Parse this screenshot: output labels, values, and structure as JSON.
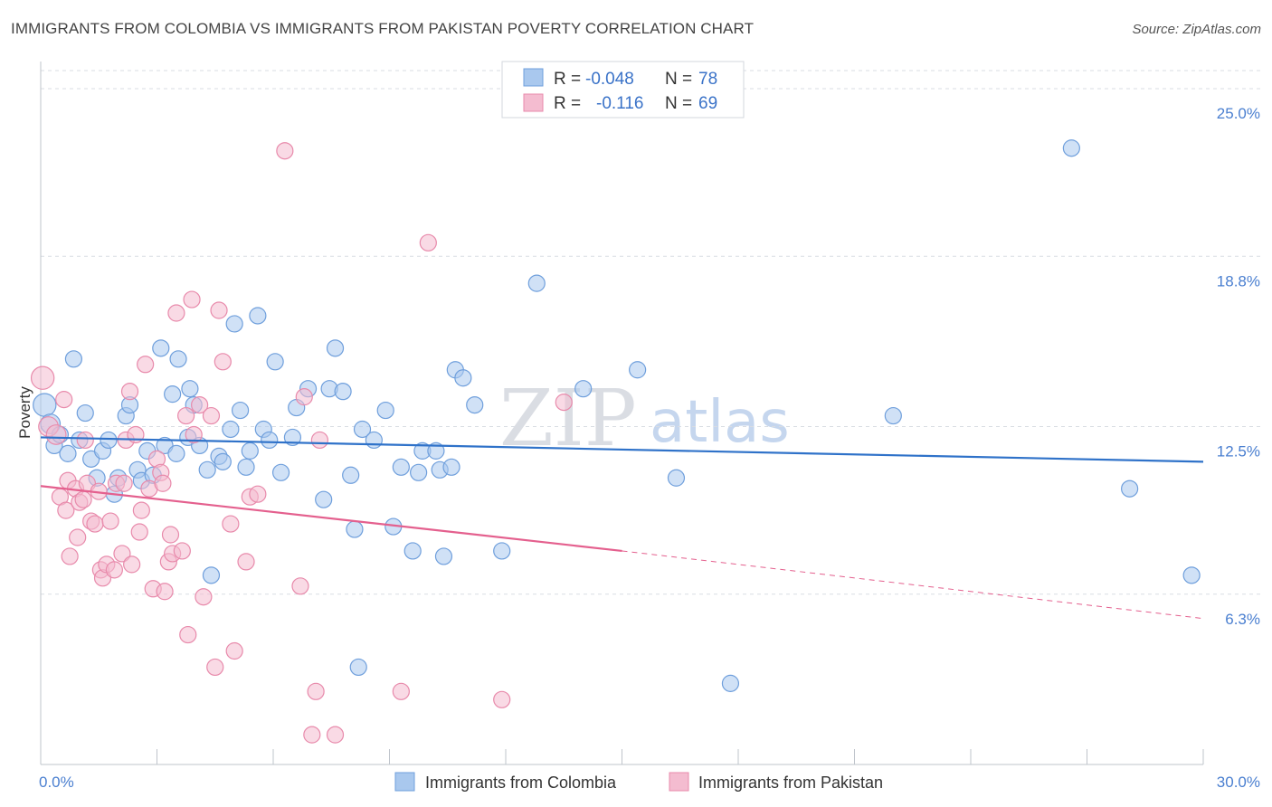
{
  "title": "IMMIGRANTS FROM COLOMBIA VS IMMIGRANTS FROM PAKISTAN POVERTY CORRELATION CHART",
  "source": "Source: ZipAtlas.com",
  "watermark": {
    "zip": "ZIP",
    "atlas": "atlas"
  },
  "colors": {
    "colombia_fill": "#a9c8ee",
    "colombia_stroke": "#6f9fdc",
    "colombia_line": "#2f72c9",
    "pakistan_fill": "#f4bcd0",
    "pakistan_stroke": "#e88aab",
    "pakistan_line": "#e4608e",
    "grid": "#d9dde3",
    "tick_label": "#4a7fd0"
  },
  "legend": {
    "rows": [
      {
        "r_label": "R =",
        "r_value": "-0.048",
        "n_label": "N =",
        "n_value": "78"
      },
      {
        "r_label": "R =",
        "r_value": "-0.116",
        "n_label": "N =",
        "n_value": "69"
      }
    ]
  },
  "chart_data": {
    "type": "scatter",
    "title": "IMMIGRANTS FROM COLOMBIA VS IMMIGRANTS FROM PAKISTAN POVERTY CORRELATION CHART",
    "xlabel": "",
    "ylabel": "Poverty",
    "xlim": [
      0,
      30
    ],
    "ylim": [
      0,
      26
    ],
    "x_ticks": [
      {
        "value": 0,
        "label": "0.0%"
      },
      {
        "value": 30,
        "label": "30.0%"
      }
    ],
    "y_ticks": [
      {
        "value": 6.3,
        "label": "6.3%"
      },
      {
        "value": 12.5,
        "label": "12.5%"
      },
      {
        "value": 18.8,
        "label": "18.8%"
      },
      {
        "value": 25.0,
        "label": "25.0%"
      }
    ],
    "series": [
      {
        "name": "Immigrants from Colombia",
        "r": -0.048,
        "n": 78,
        "trend": {
          "x": [
            0,
            30
          ],
          "y": [
            12.1,
            11.2
          ]
        },
        "points": [
          [
            0.1,
            13.3,
            14
          ],
          [
            0.25,
            12.6,
            12
          ],
          [
            0.35,
            11.8,
            10
          ],
          [
            0.5,
            12.2,
            10
          ],
          [
            0.7,
            11.5,
            10
          ],
          [
            0.85,
            15.0,
            10
          ],
          [
            1.0,
            12.0,
            10
          ],
          [
            1.15,
            13.0,
            10
          ],
          [
            1.3,
            11.3,
            10
          ],
          [
            1.45,
            10.6,
            10
          ],
          [
            1.6,
            11.6,
            10
          ],
          [
            1.75,
            12.0,
            10
          ],
          [
            1.9,
            10.0,
            10
          ],
          [
            2.0,
            10.6,
            10
          ],
          [
            2.2,
            12.9,
            10
          ],
          [
            2.3,
            13.3,
            10
          ],
          [
            2.5,
            10.9,
            10
          ],
          [
            2.6,
            10.5,
            10
          ],
          [
            2.75,
            11.6,
            10
          ],
          [
            2.9,
            10.7,
            10
          ],
          [
            3.1,
            15.4,
            10
          ],
          [
            3.2,
            11.8,
            10
          ],
          [
            3.4,
            13.7,
            10
          ],
          [
            3.5,
            11.5,
            10
          ],
          [
            3.55,
            15.0,
            10
          ],
          [
            3.8,
            12.1,
            10
          ],
          [
            3.85,
            13.9,
            10
          ],
          [
            3.95,
            13.3,
            10
          ],
          [
            4.1,
            11.8,
            10
          ],
          [
            4.3,
            10.9,
            10
          ],
          [
            4.4,
            7.0,
            10
          ],
          [
            4.6,
            11.4,
            10
          ],
          [
            4.7,
            11.2,
            10
          ],
          [
            4.9,
            12.4,
            10
          ],
          [
            5.0,
            16.3,
            10
          ],
          [
            5.15,
            13.1,
            10
          ],
          [
            5.3,
            11.0,
            10
          ],
          [
            5.4,
            11.6,
            10
          ],
          [
            5.6,
            16.6,
            10
          ],
          [
            5.75,
            12.4,
            10
          ],
          [
            5.9,
            12.0,
            10
          ],
          [
            6.05,
            14.9,
            10
          ],
          [
            6.2,
            10.8,
            10
          ],
          [
            6.5,
            12.1,
            10
          ],
          [
            6.6,
            13.2,
            10
          ],
          [
            6.9,
            13.9,
            10
          ],
          [
            7.3,
            9.8,
            10
          ],
          [
            7.45,
            13.9,
            10
          ],
          [
            7.6,
            15.4,
            10
          ],
          [
            7.8,
            13.8,
            10
          ],
          [
            8.0,
            10.7,
            10
          ],
          [
            8.1,
            8.7,
            10
          ],
          [
            8.2,
            3.6,
            10
          ],
          [
            8.3,
            12.4,
            10
          ],
          [
            8.6,
            12.0,
            10
          ],
          [
            8.9,
            13.1,
            10
          ],
          [
            9.1,
            8.8,
            10
          ],
          [
            9.3,
            11.0,
            10
          ],
          [
            9.6,
            7.9,
            10
          ],
          [
            9.75,
            10.8,
            10
          ],
          [
            9.85,
            11.6,
            10
          ],
          [
            10.2,
            11.6,
            10
          ],
          [
            10.3,
            10.9,
            10
          ],
          [
            10.4,
            7.7,
            10
          ],
          [
            10.6,
            11.0,
            10
          ],
          [
            10.7,
            14.6,
            10
          ],
          [
            10.9,
            14.3,
            10
          ],
          [
            11.2,
            13.3,
            10
          ],
          [
            11.9,
            7.9,
            10
          ],
          [
            12.8,
            17.8,
            10
          ],
          [
            14.0,
            13.9,
            10
          ],
          [
            15.4,
            14.6,
            10
          ],
          [
            16.4,
            10.6,
            10
          ],
          [
            17.8,
            3.0,
            10
          ],
          [
            22.0,
            12.9,
            10
          ],
          [
            26.6,
            22.8,
            10
          ],
          [
            28.1,
            10.2,
            10
          ],
          [
            29.7,
            7.0,
            10
          ]
        ]
      },
      {
        "name": "Immigrants from Pakistan",
        "r": -0.116,
        "n": 69,
        "trend": {
          "x": [
            0,
            15
          ],
          "y": [
            10.3,
            7.9
          ]
        },
        "trend_dashed": {
          "x": [
            15,
            30
          ],
          "y": [
            7.9,
            5.4
          ]
        },
        "points": [
          [
            0.05,
            14.3,
            14
          ],
          [
            0.2,
            12.5,
            12
          ],
          [
            0.4,
            12.2,
            12
          ],
          [
            0.5,
            9.9,
            10
          ],
          [
            0.6,
            13.5,
            10
          ],
          [
            0.65,
            9.4,
            10
          ],
          [
            0.7,
            10.5,
            10
          ],
          [
            0.75,
            7.7,
            10
          ],
          [
            0.9,
            10.2,
            10
          ],
          [
            0.95,
            8.4,
            10
          ],
          [
            1.0,
            9.7,
            10
          ],
          [
            1.1,
            9.8,
            10
          ],
          [
            1.15,
            12.0,
            10
          ],
          [
            1.2,
            10.4,
            10
          ],
          [
            1.3,
            9.0,
            10
          ],
          [
            1.4,
            8.9,
            10
          ],
          [
            1.5,
            10.1,
            10
          ],
          [
            1.55,
            7.2,
            10
          ],
          [
            1.6,
            6.9,
            10
          ],
          [
            1.7,
            7.4,
            10
          ],
          [
            1.8,
            9.0,
            10
          ],
          [
            1.9,
            7.2,
            10
          ],
          [
            1.95,
            10.4,
            10
          ],
          [
            2.1,
            7.8,
            10
          ],
          [
            2.15,
            10.4,
            10
          ],
          [
            2.2,
            12.0,
            10
          ],
          [
            2.3,
            13.8,
            10
          ],
          [
            2.35,
            7.4,
            10
          ],
          [
            2.45,
            12.2,
            10
          ],
          [
            2.55,
            8.6,
            10
          ],
          [
            2.6,
            9.4,
            10
          ],
          [
            2.7,
            14.8,
            10
          ],
          [
            2.8,
            10.2,
            10
          ],
          [
            2.9,
            6.5,
            10
          ],
          [
            3.0,
            11.3,
            10
          ],
          [
            3.1,
            10.8,
            10
          ],
          [
            3.15,
            10.4,
            10
          ],
          [
            3.2,
            6.4,
            10
          ],
          [
            3.3,
            7.5,
            10
          ],
          [
            3.35,
            8.5,
            10
          ],
          [
            3.4,
            7.8,
            10
          ],
          [
            3.5,
            16.7,
            10
          ],
          [
            3.65,
            7.9,
            10
          ],
          [
            3.75,
            12.9,
            10
          ],
          [
            3.8,
            4.8,
            10
          ],
          [
            3.9,
            17.2,
            10
          ],
          [
            3.95,
            12.2,
            10
          ],
          [
            4.1,
            13.3,
            10
          ],
          [
            4.2,
            6.2,
            10
          ],
          [
            4.4,
            12.9,
            10
          ],
          [
            4.5,
            3.6,
            10
          ],
          [
            4.6,
            16.8,
            10
          ],
          [
            4.7,
            14.9,
            10
          ],
          [
            4.9,
            8.9,
            10
          ],
          [
            5.0,
            4.2,
            10
          ],
          [
            5.3,
            7.5,
            10
          ],
          [
            5.4,
            9.9,
            10
          ],
          [
            5.6,
            10.0,
            10
          ],
          [
            6.3,
            22.7,
            10
          ],
          [
            6.7,
            6.6,
            10
          ],
          [
            6.8,
            13.6,
            10
          ],
          [
            7.0,
            1.1,
            10
          ],
          [
            7.1,
            2.7,
            10
          ],
          [
            7.2,
            12.0,
            10
          ],
          [
            7.6,
            1.1,
            10
          ],
          [
            9.3,
            2.7,
            10
          ],
          [
            10.0,
            19.3,
            10
          ],
          [
            11.9,
            2.4,
            10
          ],
          [
            13.5,
            13.4,
            10
          ]
        ]
      }
    ],
    "legend_position": "top-center"
  }
}
